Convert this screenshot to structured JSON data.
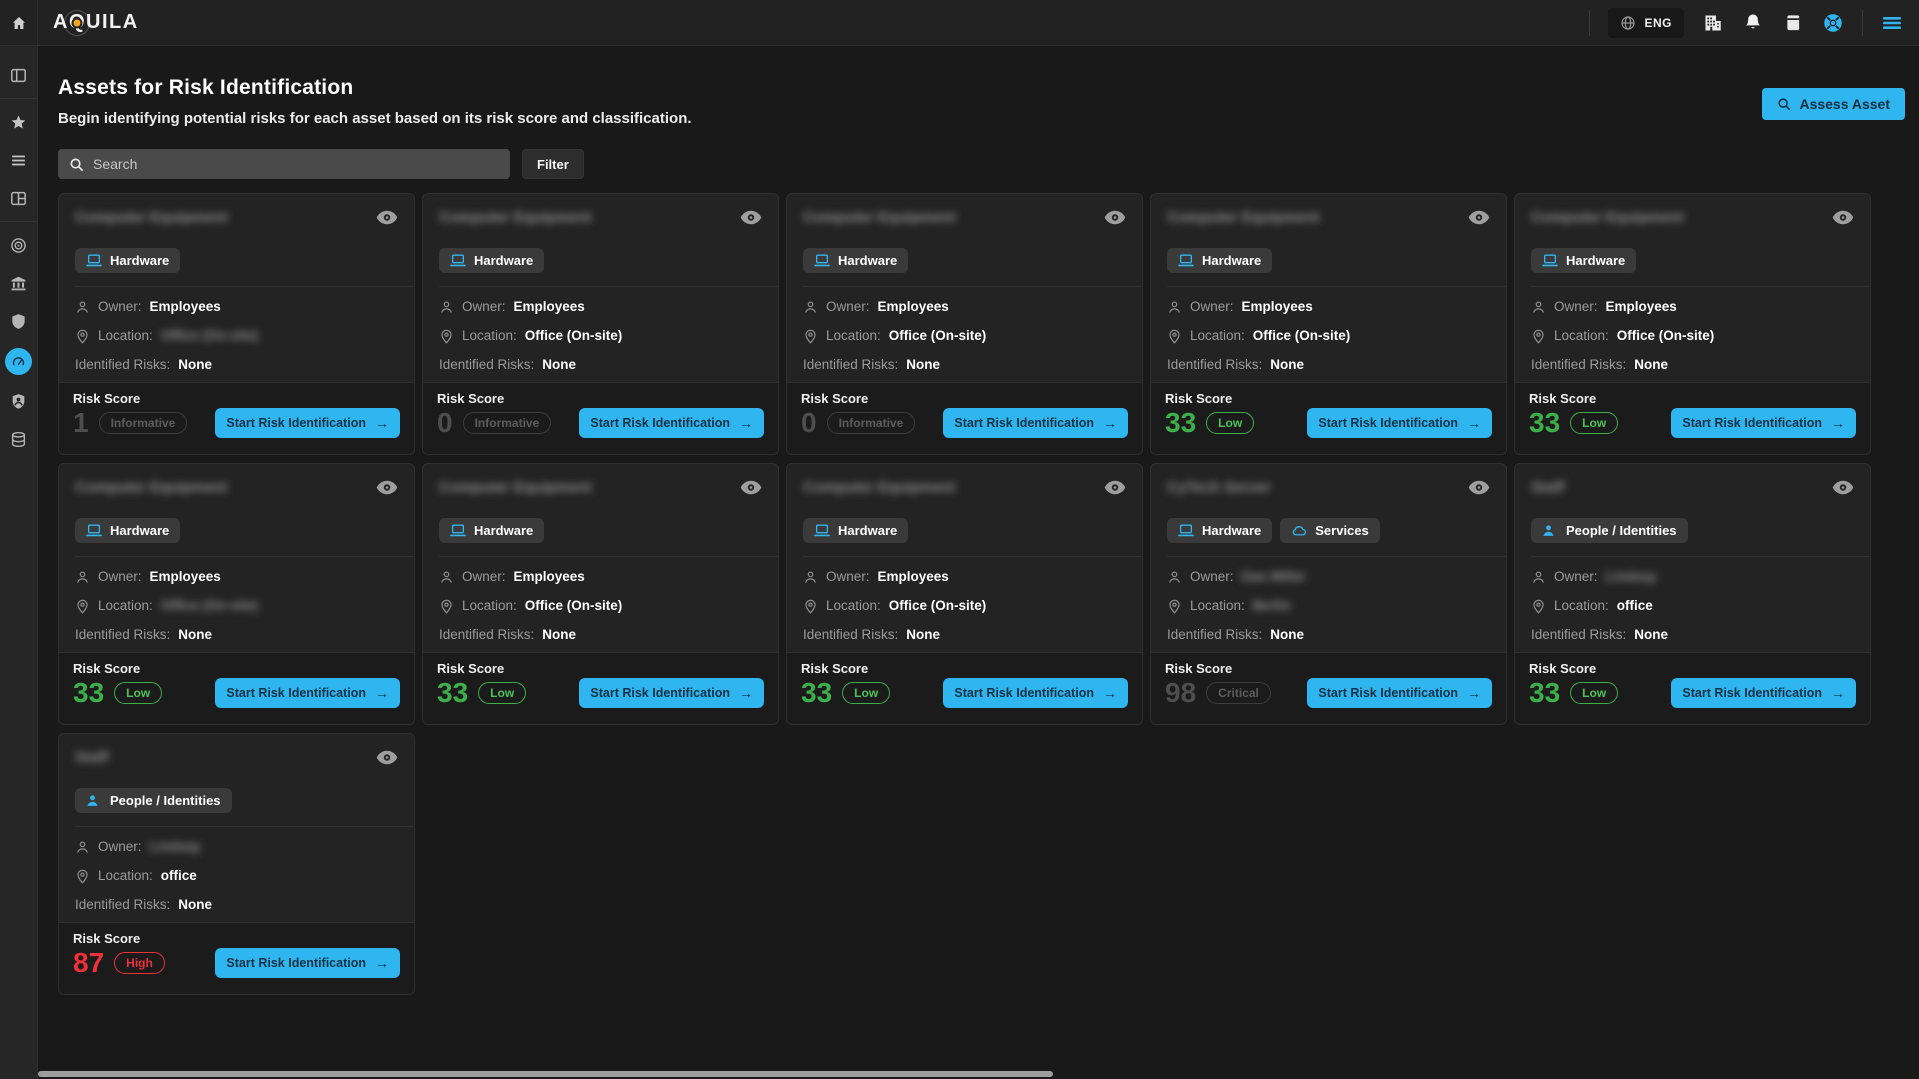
{
  "navbar": {
    "logo": {
      "a": "A",
      "q": "Q",
      "rest": "UILA"
    },
    "language": "ENG",
    "icons": [
      {
        "divider": true
      },
      {
        "name": "language-selector",
        "icon": "globe-icon",
        "label": "ENG"
      },
      {
        "name": "organization-button",
        "icon": "building-icon"
      },
      {
        "name": "notifications-button",
        "icon": "bell-icon"
      },
      {
        "name": "documentation-button",
        "icon": "book-icon"
      },
      {
        "name": "support-button",
        "icon": "lifebuoy-icon"
      },
      {
        "divider": true
      },
      {
        "name": "menu-button",
        "icon": "hamburger-icon"
      }
    ]
  },
  "sidebar": {
    "items": [
      {
        "icon": "panel-toggle-icon",
        "divider_after": true
      },
      {
        "icon": "star-icon"
      },
      {
        "icon": "menu-lines-icon"
      },
      {
        "icon": "layout-grid-icon",
        "divider_after": true
      },
      {
        "icon": "target-icon"
      },
      {
        "icon": "bank-icon"
      },
      {
        "icon": "shield-icon"
      },
      {
        "icon": "gauge-icon",
        "active": true
      },
      {
        "icon": "identity-badge-icon"
      },
      {
        "icon": "database-icon"
      }
    ]
  },
  "header": {
    "title": "Assets for Risk Identification",
    "subtitle": "Begin identifying potential risks for each asset based on its risk score and classification.",
    "assess_button": "Assess Asset"
  },
  "toolbar": {
    "search_placeholder": "Search",
    "filter_label": "Filter"
  },
  "labels": {
    "owner": "Owner:",
    "location": "Location:",
    "risks": "Identified Risks:",
    "risk_score": "Risk Score",
    "start_button": "Start Risk Identification",
    "arrow": "→"
  },
  "colors": {
    "accent": "#2fb5f0",
    "low": "#3eb04a",
    "high": "#ee3038",
    "dim": "#5c5c5c",
    "logo_dot": "#f2a71b"
  },
  "cards": [
    {
      "title": "Computer Equipment",
      "title_redacted": true,
      "badges": [
        {
          "label": "Hardware",
          "icon": "laptop-icon"
        }
      ],
      "owner": "Employees",
      "owner_redacted": false,
      "location": "Office (On-site)",
      "location_redacted": true,
      "risks": "None",
      "score": "1",
      "severity": "Informative",
      "tone": "dim"
    },
    {
      "title": "Computer Equipment",
      "title_redacted": true,
      "badges": [
        {
          "label": "Hardware",
          "icon": "laptop-icon"
        }
      ],
      "owner": "Employees",
      "owner_redacted": false,
      "location": "Office (On-site)",
      "location_redacted": false,
      "risks": "None",
      "score": "0",
      "severity": "Informative",
      "tone": "dim"
    },
    {
      "title": "Computer Equipment",
      "title_redacted": true,
      "badges": [
        {
          "label": "Hardware",
          "icon": "laptop-icon"
        }
      ],
      "owner": "Employees",
      "owner_redacted": false,
      "location": "Office (On-site)",
      "location_redacted": false,
      "risks": "None",
      "score": "0",
      "severity": "Informative",
      "tone": "dim"
    },
    {
      "title": "Computer Equipment",
      "title_redacted": true,
      "badges": [
        {
          "label": "Hardware",
          "icon": "laptop-icon"
        }
      ],
      "owner": "Employees",
      "owner_redacted": false,
      "location": "Office (On-site)",
      "location_redacted": false,
      "risks": "None",
      "score": "33",
      "severity": "Low",
      "tone": "low"
    },
    {
      "title": "Computer Equipment",
      "title_redacted": true,
      "badges": [
        {
          "label": "Hardware",
          "icon": "laptop-icon"
        }
      ],
      "owner": "Employees",
      "owner_redacted": false,
      "location": "Office (On-site)",
      "location_redacted": false,
      "risks": "None",
      "score": "33",
      "severity": "Low",
      "tone": "low"
    },
    {
      "title": "Computer Equipment",
      "title_redacted": true,
      "badges": [
        {
          "label": "Hardware",
          "icon": "laptop-icon"
        }
      ],
      "owner": "Employees",
      "owner_redacted": false,
      "location": "Office (On-site)",
      "location_redacted": true,
      "risks": "None",
      "score": "33",
      "severity": "Low",
      "tone": "low"
    },
    {
      "title": "Computer Equipment",
      "title_redacted": true,
      "badges": [
        {
          "label": "Hardware",
          "icon": "laptop-icon"
        }
      ],
      "owner": "Employees",
      "owner_redacted": false,
      "location": "Office (On-site)",
      "location_redacted": false,
      "risks": "None",
      "score": "33",
      "severity": "Low",
      "tone": "low"
    },
    {
      "title": "Computer Equipment",
      "title_redacted": true,
      "badges": [
        {
          "label": "Hardware",
          "icon": "laptop-icon"
        }
      ],
      "owner": "Employees",
      "owner_redacted": false,
      "location": "Office (On-site)",
      "location_redacted": false,
      "risks": "None",
      "score": "33",
      "severity": "Low",
      "tone": "low"
    },
    {
      "title": "CyTech Server",
      "title_redacted": true,
      "badges": [
        {
          "label": "Hardware",
          "icon": "laptop-icon"
        },
        {
          "label": "Services",
          "icon": "cloud-icon"
        }
      ],
      "owner": "Dan Miller",
      "owner_redacted": true,
      "location": "Berlin",
      "location_redacted": true,
      "risks": "None",
      "score": "98",
      "severity": "Critical",
      "tone": "dim"
    },
    {
      "title": "Staff",
      "title_redacted": true,
      "badges": [
        {
          "label": "People / Identities",
          "icon": "person-icon"
        }
      ],
      "owner": "Lindsay",
      "owner_redacted": true,
      "location": "office",
      "location_redacted": false,
      "risks": "None",
      "score": "33",
      "severity": "Low",
      "tone": "low"
    },
    {
      "title": "Staff",
      "title_redacted": true,
      "badges": [
        {
          "label": "People / Identities",
          "icon": "person-icon"
        }
      ],
      "owner": "Lindsay",
      "owner_redacted": true,
      "location": "office",
      "location_redacted": false,
      "risks": "None",
      "score": "87",
      "severity": "High",
      "tone": "high"
    }
  ]
}
